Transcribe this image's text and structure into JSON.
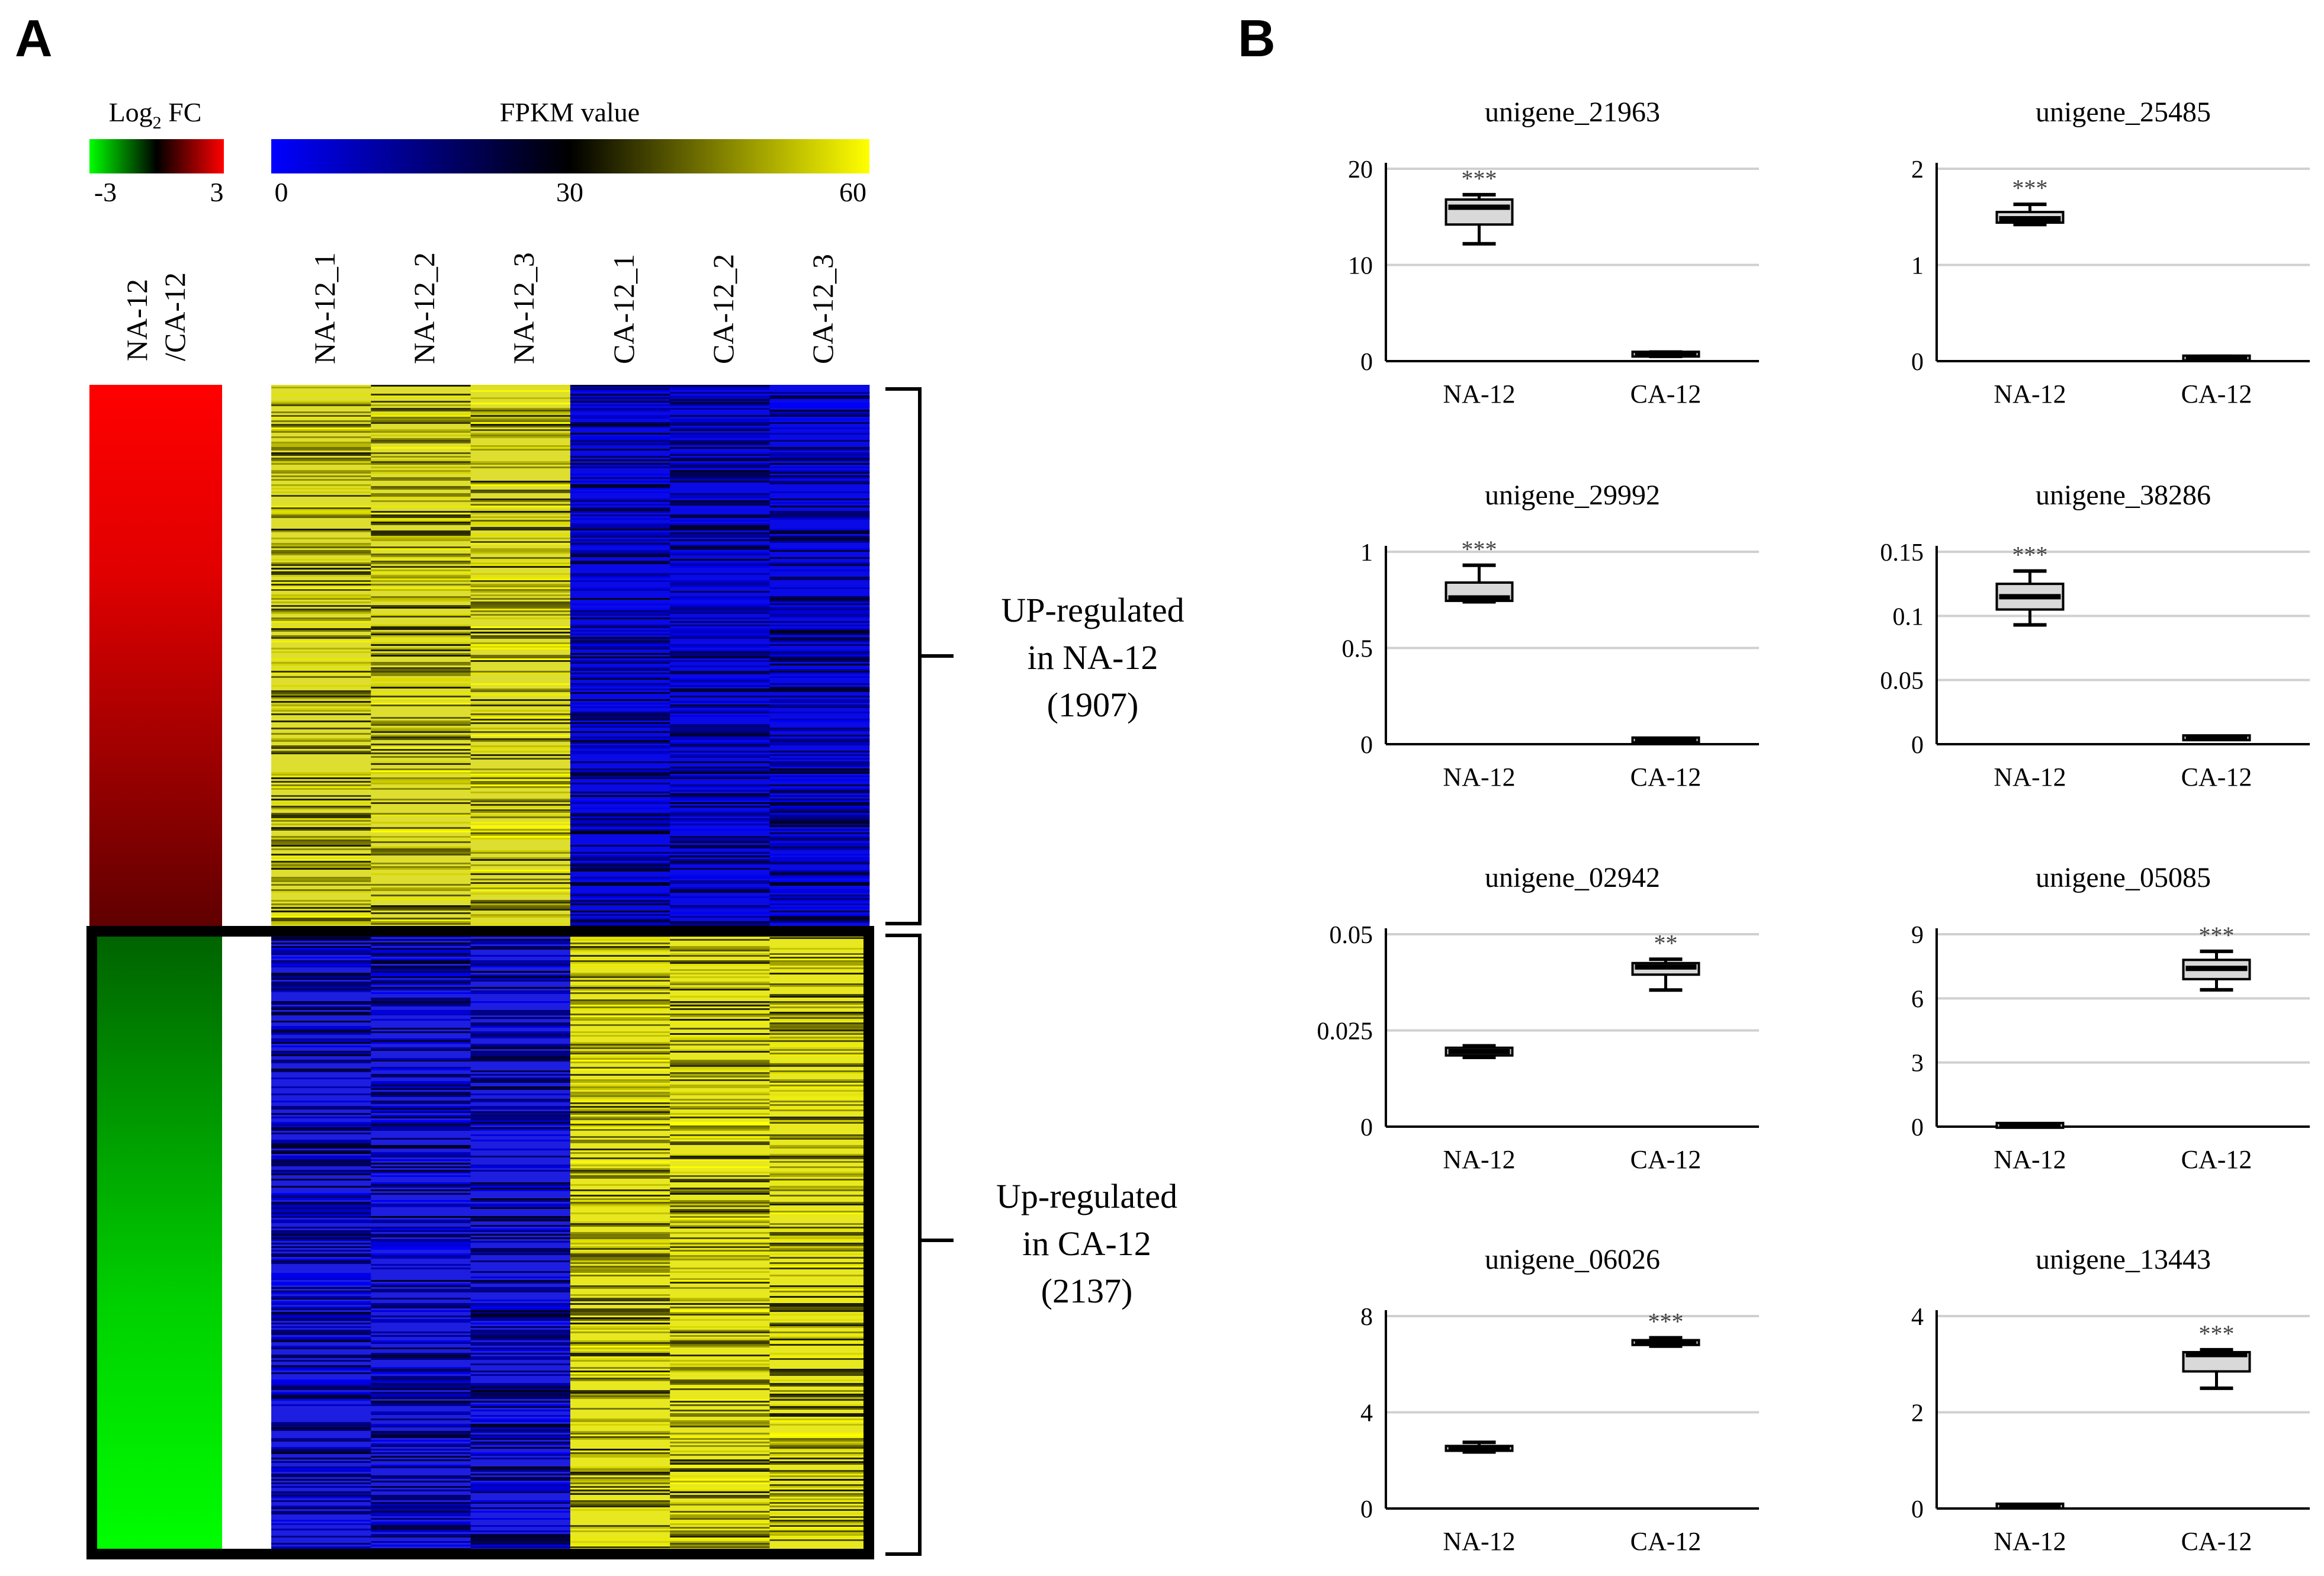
{
  "panel_a": {
    "letter": "A",
    "fc_legend": {
      "title_prefix": "Log",
      "title_sub": "2",
      "title_suffix": " FC",
      "min": "-3",
      "max": "3"
    },
    "fpkm_legend": {
      "title": "FPKM value",
      "ticks": [
        "0",
        "30",
        "60"
      ]
    },
    "fc_column_label": [
      "NA-12",
      "/CA-12"
    ],
    "sample_labels": [
      "NA-12_1",
      "NA-12_2",
      "NA-12_3",
      "CA-12_1",
      "CA-12_2",
      "CA-12_3"
    ],
    "groups": [
      {
        "lines": [
          "UP-regulated",
          "in NA-12",
          "(1907)"
        ]
      },
      {
        "lines": [
          "Up-regulated",
          "in CA-12",
          "(2137)"
        ]
      }
    ],
    "colors": {
      "fc_up": "#ff0000",
      "fc_mid": "#000000",
      "fc_down": "#00ff00",
      "fpkm_low": "#0000ff",
      "fpkm_mid": "#000000",
      "fpkm_high": "#ffff00"
    }
  },
  "panel_b": {
    "letter": "B"
  },
  "chart_data": [
    {
      "type": "box",
      "title": "unigene_21963",
      "categories": [
        "NA-12",
        "CA-12"
      ],
      "ylim": [
        0,
        20
      ],
      "yticks": [
        "0",
        "10",
        "20"
      ],
      "boxes": [
        {
          "min": 12.2,
          "q1": 14.2,
          "median": 16.0,
          "q3": 16.8,
          "max": 17.3
        },
        {
          "min": 0.5,
          "q1": 0.6,
          "median": 0.75,
          "q3": 0.85,
          "max": 0.95
        }
      ],
      "significance": [
        "***",
        ""
      ]
    },
    {
      "type": "box",
      "title": "unigene_25485",
      "categories": [
        "NA-12",
        "CA-12"
      ],
      "ylim": [
        0,
        2
      ],
      "yticks": [
        "0",
        "1",
        "2"
      ],
      "boxes": [
        {
          "min": 1.42,
          "q1": 1.44,
          "median": 1.48,
          "q3": 1.55,
          "max": 1.63
        },
        {
          "min": 0.02,
          "q1": 0.025,
          "median": 0.03,
          "q3": 0.04,
          "max": 0.05
        }
      ],
      "significance": [
        "***",
        ""
      ]
    },
    {
      "type": "box",
      "title": "unigene_29992",
      "categories": [
        "NA-12",
        "CA-12"
      ],
      "ylim": [
        0,
        1
      ],
      "yticks": [
        "0",
        "0.5",
        "1"
      ],
      "boxes": [
        {
          "min": 0.74,
          "q1": 0.745,
          "median": 0.76,
          "q3": 0.84,
          "max": 0.93
        },
        {
          "min": 0.015,
          "q1": 0.018,
          "median": 0.022,
          "q3": 0.026,
          "max": 0.03
        }
      ],
      "significance": [
        "***",
        ""
      ]
    },
    {
      "type": "box",
      "title": "unigene_38286",
      "categories": [
        "NA-12",
        "CA-12"
      ],
      "ylim": [
        0,
        0.15
      ],
      "yticks": [
        "0",
        "0.05",
        "0.1",
        "0.15"
      ],
      "boxes": [
        {
          "min": 0.093,
          "q1": 0.105,
          "median": 0.115,
          "q3": 0.125,
          "max": 0.135
        },
        {
          "min": 0.004,
          "q1": 0.0045,
          "median": 0.005,
          "q3": 0.0055,
          "max": 0.006
        }
      ],
      "significance": [
        "***",
        ""
      ]
    },
    {
      "type": "box",
      "title": "unigene_02942",
      "categories": [
        "NA-12",
        "CA-12"
      ],
      "ylim": [
        0,
        0.05
      ],
      "yticks": [
        "0",
        "0.025",
        "0.05"
      ],
      "boxes": [
        {
          "min": 0.018,
          "q1": 0.0185,
          "median": 0.0195,
          "q3": 0.0205,
          "max": 0.021
        },
        {
          "min": 0.0355,
          "q1": 0.0395,
          "median": 0.0415,
          "q3": 0.0425,
          "max": 0.0435
        }
      ],
      "significance": [
        "",
        "**"
      ]
    },
    {
      "type": "box",
      "title": "unigene_05085",
      "categories": [
        "NA-12",
        "CA-12"
      ],
      "ylim": [
        0,
        9
      ],
      "yticks": [
        "0",
        "3",
        "6",
        "9"
      ],
      "boxes": [
        {
          "min": 0.02,
          "q1": 0.04,
          "median": 0.06,
          "q3": 0.08,
          "max": 0.1
        },
        {
          "min": 6.4,
          "q1": 6.9,
          "median": 7.4,
          "q3": 7.8,
          "max": 8.2
        }
      ],
      "significance": [
        "",
        "***"
      ]
    },
    {
      "type": "box",
      "title": "unigene_06026",
      "categories": [
        "NA-12",
        "CA-12"
      ],
      "ylim": [
        0,
        8
      ],
      "yticks": [
        "0",
        "4",
        "8"
      ],
      "boxes": [
        {
          "min": 2.35,
          "q1": 2.4,
          "median": 2.5,
          "q3": 2.6,
          "max": 2.75
        },
        {
          "min": 6.75,
          "q1": 6.8,
          "median": 6.9,
          "q3": 7.0,
          "max": 7.1
        }
      ],
      "significance": [
        "",
        "***"
      ]
    },
    {
      "type": "box",
      "title": "unigene_13443",
      "categories": [
        "NA-12",
        "CA-12"
      ],
      "ylim": [
        0,
        4
      ],
      "yticks": [
        "0",
        "2",
        "4"
      ],
      "boxes": [
        {
          "min": 0.03,
          "q1": 0.04,
          "median": 0.05,
          "q3": 0.06,
          "max": 0.08
        },
        {
          "min": 2.5,
          "q1": 2.85,
          "median": 3.2,
          "q3": 3.25,
          "max": 3.3
        }
      ],
      "significance": [
        "",
        "***"
      ]
    }
  ]
}
